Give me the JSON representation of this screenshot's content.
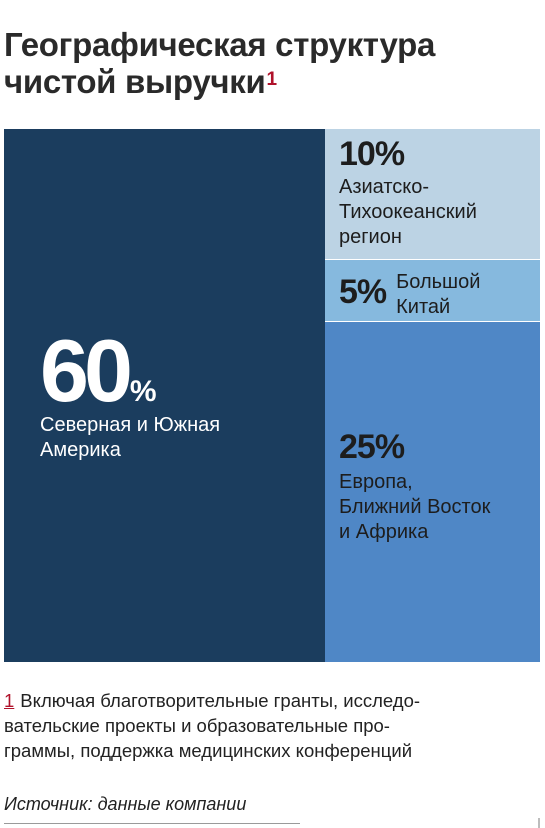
{
  "title_lines": [
    "Географическая структура",
    "чистой выручки"
  ],
  "title_footnote_mark": "1",
  "chart_data": {
    "type": "treemap",
    "unit": "%",
    "segments": [
      {
        "value": 60,
        "pct_text": "60",
        "pct_sign": "%",
        "label_lines": [
          "Северная и Южная",
          "Америка"
        ],
        "color": "#1b3d5e",
        "text_color": "#ffffff"
      },
      {
        "value": 10,
        "pct_text": "10%",
        "label_lines": [
          "Азиатско-",
          "Тихоокеанский",
          "регион"
        ],
        "color": "#bcd3e4",
        "text_color": "#1d1d1d"
      },
      {
        "value": 5,
        "pct_text": "5%",
        "label_lines": [
          "Большой",
          "Китай"
        ],
        "color": "#86b9de",
        "text_color": "#1d1d1d"
      },
      {
        "value": 25,
        "pct_text": "25%",
        "label_lines": [
          "Европа,",
          "Ближний Восток",
          "и Африка"
        ],
        "color": "#4f87c6",
        "text_color": "#1d1d1d"
      }
    ]
  },
  "footnote": {
    "mark": "1",
    "lines": [
      "Включая благотворительные гранты, исследо-",
      "вательские проекты и образовательные про-",
      "граммы, поддержка медицинских конференций"
    ]
  },
  "source": "Источник: данные компании"
}
